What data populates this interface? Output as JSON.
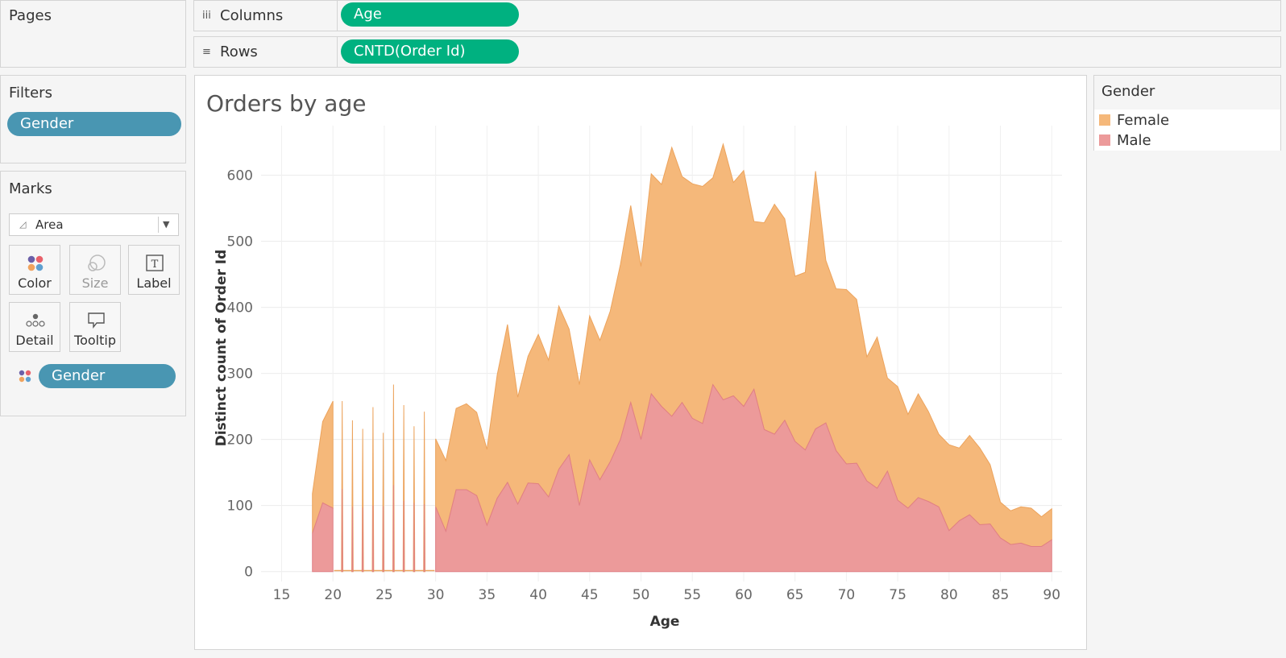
{
  "pages": {
    "title": "Pages"
  },
  "shelves": {
    "columns": {
      "label": "Columns",
      "icon": "iii",
      "pill": "Age"
    },
    "rows": {
      "label": "Rows",
      "icon": "≡",
      "pill": "CNTD(Order Id)"
    }
  },
  "filters": {
    "title": "Filters",
    "pills": [
      "Gender"
    ]
  },
  "marks": {
    "title": "Marks",
    "type": "Area",
    "buttons": {
      "color": "Color",
      "size": "Size",
      "label": "Label",
      "detail": "Detail",
      "tooltip": "Tooltip"
    },
    "color_pill": "Gender"
  },
  "legend": {
    "title": "Gender",
    "items": [
      {
        "label": "Female",
        "color": "#f5b87a"
      },
      {
        "label": "Male",
        "color": "#ec9a9a"
      }
    ]
  },
  "chart_data": {
    "type": "area",
    "title": "Orders by age",
    "xlabel": "Age",
    "ylabel": "Distinct count of Order Id",
    "xlim": [
      13,
      91
    ],
    "ylim": [
      -15,
      675
    ],
    "x_ticks": [
      15,
      20,
      25,
      30,
      35,
      40,
      45,
      50,
      55,
      60,
      65,
      70,
      75,
      80,
      85,
      90
    ],
    "y_ticks": [
      0,
      100,
      200,
      300,
      400,
      500,
      600
    ],
    "stacked": true,
    "x": [
      18,
      19,
      20,
      21,
      22,
      23,
      24,
      25,
      26,
      27,
      28,
      29,
      30,
      31,
      32,
      33,
      34,
      35,
      36,
      37,
      38,
      39,
      40,
      41,
      42,
      43,
      44,
      45,
      46,
      47,
      48,
      49,
      50,
      51,
      52,
      53,
      54,
      55,
      56,
      57,
      58,
      59,
      60,
      61,
      62,
      63,
      64,
      65,
      66,
      67,
      68,
      69,
      70,
      71,
      72,
      73,
      74,
      75,
      76,
      77,
      78,
      79,
      80,
      81,
      82,
      83,
      84,
      85,
      86,
      87,
      88,
      89,
      90
    ],
    "series": [
      {
        "name": "Male",
        "color": "#ec9a9a",
        "values": [
          58,
          104,
          96,
          125,
          98,
          97,
          100,
          99,
          131,
          107,
          104,
          102,
          98,
          61,
          124,
          124,
          115,
          70,
          111,
          135,
          102,
          134,
          133,
          113,
          155,
          177,
          100,
          169,
          139,
          166,
          200,
          256,
          200,
          269,
          250,
          235,
          256,
          232,
          224,
          283,
          260,
          266,
          250,
          276,
          215,
          208,
          229,
          197,
          184,
          216,
          225,
          183,
          163,
          164,
          137,
          126,
          152,
          108,
          96,
          112,
          106,
          98,
          62,
          77,
          86,
          71,
          72,
          51,
          41,
          43,
          38,
          38,
          48
        ]
      },
      {
        "name": "Female",
        "color": "#f5b87a",
        "values": [
          60,
          123,
          162,
          133,
          131,
          119,
          150,
          111,
          152,
          145,
          116,
          140,
          103,
          107,
          123,
          130,
          126,
          115,
          187,
          239,
          162,
          192,
          226,
          207,
          247,
          190,
          183,
          218,
          211,
          228,
          265,
          298,
          262,
          333,
          336,
          407,
          342,
          355,
          359,
          313,
          387,
          323,
          357,
          254,
          313,
          348,
          305,
          250,
          269,
          390,
          246,
          245,
          264,
          248,
          188,
          229,
          141,
          172,
          142,
          157,
          136,
          110,
          130,
          110,
          120,
          116,
          90,
          54,
          51,
          55,
          58,
          45,
          47
        ]
      }
    ],
    "spikes": [
      {
        "x": 20.9,
        "Male": 125,
        "total": 258
      },
      {
        "x": 21.9,
        "Male": 98,
        "total": 229
      },
      {
        "x": 22.9,
        "Male": 97,
        "total": 216
      },
      {
        "x": 23.9,
        "Male": 100,
        "total": 249
      },
      {
        "x": 24.9,
        "Male": 99,
        "total": 210
      },
      {
        "x": 25.9,
        "Male": 131,
        "total": 283
      },
      {
        "x": 26.9,
        "Male": 107,
        "total": 252
      },
      {
        "x": 27.9,
        "Male": 104,
        "total": 220
      },
      {
        "x": 28.9,
        "Male": 102,
        "total": 242
      }
    ]
  }
}
